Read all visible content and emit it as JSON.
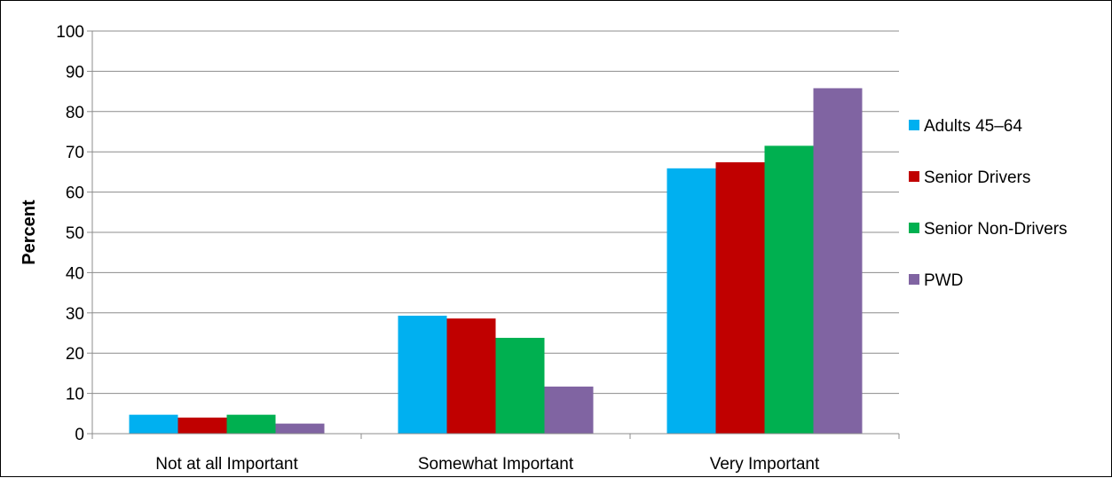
{
  "chart_data": {
    "type": "bar",
    "title": "",
    "xlabel": "",
    "ylabel": "Percent",
    "ylim": [
      0,
      100
    ],
    "yticks": [
      0,
      10,
      20,
      30,
      40,
      50,
      60,
      70,
      80,
      90,
      100
    ],
    "grid": true,
    "legend_position": "right",
    "categories": [
      "Not at all Important",
      "Somewhat Important",
      "Very Important"
    ],
    "series": [
      {
        "name": "Adults 45–64",
        "color": "#00b0f0",
        "values": [
          4.7,
          29.3,
          65.9
        ]
      },
      {
        "name": "Senior Drivers",
        "color": "#c00000",
        "values": [
          4.0,
          28.6,
          67.4
        ]
      },
      {
        "name": "Senior Non-Drivers",
        "color": "#00b050",
        "values": [
          4.7,
          23.8,
          71.5
        ]
      },
      {
        "name": "PWD",
        "color": "#8064a2",
        "values": [
          2.5,
          11.7,
          85.8
        ]
      }
    ]
  }
}
